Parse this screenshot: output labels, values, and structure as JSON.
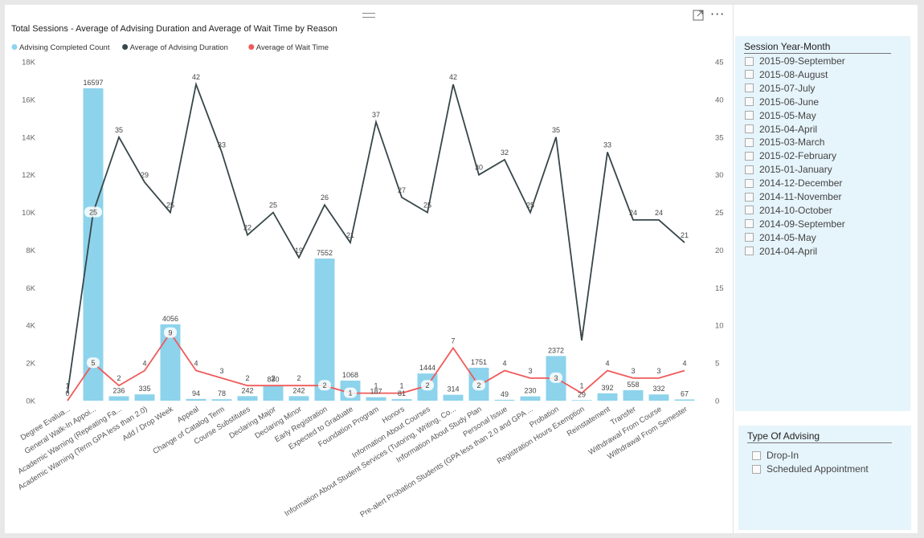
{
  "chart_visual": {
    "title": "Total Sessions -  Average of Advising Duration and Average of Wait Time by Reason",
    "more_label": "···",
    "legend": [
      {
        "label": "Advising Completed Count",
        "color": "#8dd3ec"
      },
      {
        "label": "Average of Advising Duration",
        "color": "#374649"
      },
      {
        "label": "Average of Wait Time",
        "color": "#f05a5a"
      }
    ]
  },
  "chart_data": {
    "type": "bar",
    "title": "Total Sessions -  Average of Advising Duration and Average of Wait Time by Reason",
    "categories": [
      "Degree Evalua...",
      "General Walk-In Appoi...",
      "Academic Warning (Repeating Fa...",
      "Academic Warning (Term GPA less than 2.0)",
      "Add / Drop Week",
      "Appeal",
      "Change of Catalog Term",
      "Course Substitutes",
      "Declaring Major",
      "Declaring Minor",
      "Early Registration",
      "Expected to Graduate",
      "Foundation Program",
      "Honors",
      "Information About Courses",
      "Information About Student Services (Tutoring, Writing, Co...",
      "Information About Study Plan",
      "Personal Issue",
      "Pre-alert Probation Students (GPA less than 2.0 and GPA ...",
      "Probation",
      "Registration Hours Exemption",
      "Reinstatement",
      "Transfer",
      "Withdrawal From Course",
      "Withdrawal From Semester"
    ],
    "series": [
      {
        "name": "Advising Completed Count",
        "axis": "left",
        "kind": "bar",
        "color": "#8dd3ec",
        "values": [
          null,
          16597,
          236,
          335,
          4056,
          94,
          78,
          242,
          830,
          242,
          7552,
          1068,
          187,
          81,
          1444,
          314,
          1751,
          49,
          230,
          2372,
          29,
          392,
          558,
          332,
          67
        ]
      },
      {
        "name": "Average of Advising Duration",
        "axis": "right",
        "kind": "line",
        "color": "#374649",
        "values": [
          1,
          25,
          35,
          29,
          25,
          42,
          33,
          22,
          25,
          19,
          26,
          21,
          37,
          27,
          25,
          42,
          30,
          32,
          25,
          35,
          8,
          33,
          24,
          24,
          21
        ]
      },
      {
        "name": "Average of Wait Time",
        "axis": "right",
        "kind": "line",
        "color": "#f05a5a",
        "values": [
          0,
          5,
          2,
          4,
          9,
          4,
          3,
          2,
          2,
          2,
          2,
          1,
          1,
          1,
          2,
          7,
          2,
          4,
          3,
          3,
          1,
          4,
          3,
          3,
          4
        ]
      }
    ],
    "y_left": {
      "min": 0,
      "max": 18000,
      "ticks": [
        "0K",
        "2K",
        "4K",
        "6K",
        "8K",
        "10K",
        "12K",
        "14K",
        "16K",
        "18K"
      ]
    },
    "y_right": {
      "min": 0,
      "max": 45,
      "ticks": [
        "0",
        "5",
        "10",
        "15",
        "20",
        "25",
        "30",
        "35",
        "40",
        "45"
      ]
    },
    "legend_position": "top-left",
    "grid": false
  },
  "slicers": {
    "session_year_month": {
      "title": "Session Year-Month",
      "items": [
        "2015-09-September",
        "2015-08-August",
        "2015-07-July",
        "2015-06-June",
        "2015-05-May",
        "2015-04-April",
        "2015-03-March",
        "2015-02-February",
        "2015-01-January",
        "2014-12-December",
        "2014-11-November",
        "2014-10-October",
        "2014-09-September",
        "2014-05-May",
        "2014-04-April"
      ]
    },
    "type_of_advising": {
      "title": "Type Of Advising",
      "items": [
        "Drop-In",
        "Scheduled Appointment"
      ]
    }
  }
}
